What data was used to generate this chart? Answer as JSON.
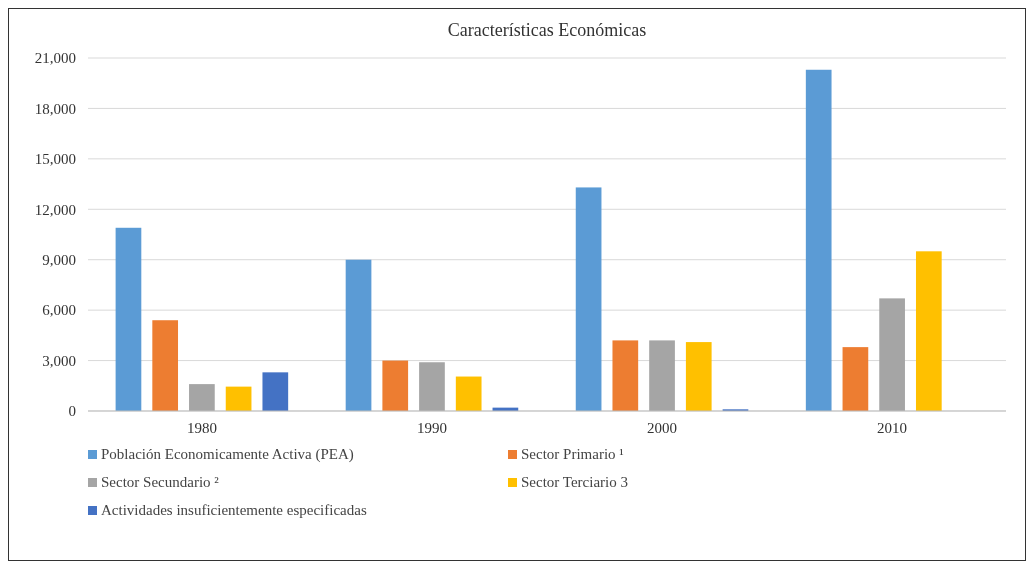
{
  "chart_data": {
    "type": "bar",
    "title": "Características  Económicas",
    "categories": [
      "1980",
      "1990",
      "2000",
      "2010"
    ],
    "series": [
      {
        "name": "Población Economicamente Activa (PEA)",
        "color": "#5b9bd5",
        "values": [
          10900,
          9000,
          13300,
          20300
        ]
      },
      {
        "name": "Sector Primario ¹",
        "color": "#ed7d31",
        "values": [
          5400,
          3000,
          4200,
          3800
        ]
      },
      {
        "name": "Sector Secundario ²",
        "color": "#a5a5a5",
        "values": [
          1600,
          2900,
          4200,
          6700
        ]
      },
      {
        "name": "Sector Terciario 3",
        "color": "#ffc000",
        "values": [
          1450,
          2050,
          4100,
          9500
        ]
      },
      {
        "name": "Actividades insuficientemente especificadas",
        "color": "#4472c4",
        "values": [
          2300,
          200,
          100,
          null
        ]
      }
    ],
    "ylim": [
      0,
      21000
    ],
    "yticks": [
      {
        "value": 0,
        "label": "0"
      },
      {
        "value": 3000,
        "label": "3,000"
      },
      {
        "value": 6000,
        "label": "6,000"
      },
      {
        "value": 9000,
        "label": "9,000"
      },
      {
        "value": 12000,
        "label": "12,000"
      },
      {
        "value": 15000,
        "label": "15,000"
      },
      {
        "value": 18000,
        "label": "18,000"
      },
      {
        "value": 21000,
        "label": "21,000"
      }
    ],
    "grid": "y",
    "legend": "bottom"
  }
}
